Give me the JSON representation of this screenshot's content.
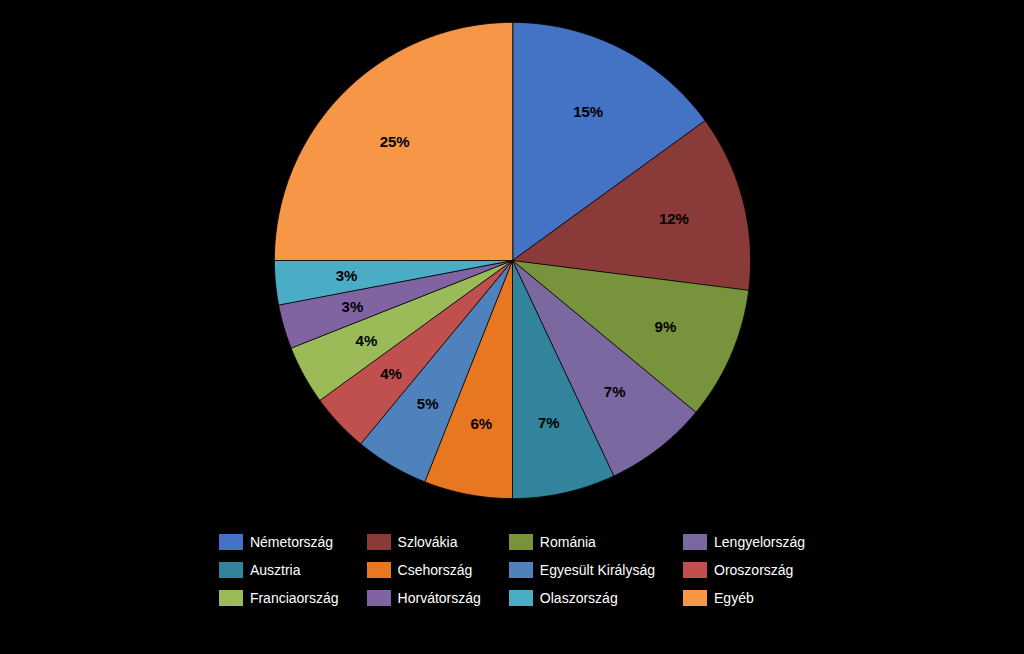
{
  "chart_data": {
    "type": "pie",
    "categories": [
      "Németország",
      "Szlovákia",
      "Románia",
      "Lengyelország",
      "Ausztria",
      "Csehország",
      "Egyesült Királyság",
      "Oroszország",
      "Franciaország",
      "Horvátország",
      "Olaszország",
      "Egyéb"
    ],
    "values": [
      15,
      12,
      9,
      7,
      7,
      6,
      5,
      4,
      4,
      3,
      3,
      25
    ],
    "value_labels": [
      "15%",
      "12%",
      "9%",
      "7%",
      "7%",
      "6%",
      "5%",
      "4%",
      "4%",
      "3%",
      "3%",
      "25%"
    ],
    "colors": [
      "#4472C4",
      "#8B3A3A",
      "#77933C",
      "#7B68A0",
      "#31849B",
      "#E87722",
      "#4F81BD",
      "#C0504D",
      "#9BBB59",
      "#8064A2",
      "#4BACC6",
      "#F79646"
    ],
    "data_labels": true,
    "legend": "bottom"
  }
}
